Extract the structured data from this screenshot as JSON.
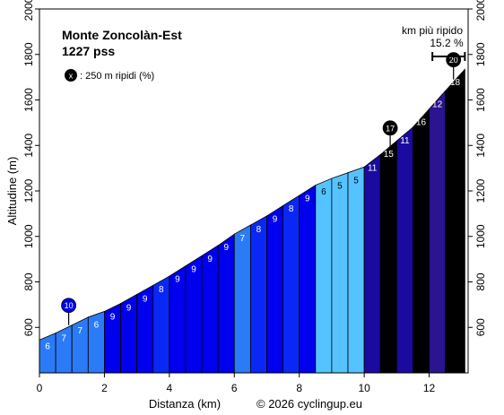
{
  "chart_data": {
    "type": "area",
    "title": "Monte Zoncolàn-Est",
    "subtitle": "1227 pss",
    "xlabel": "Distanza (km)",
    "ylabel": "Altitudine (m)",
    "credit": "© 2026 cyclingup.eu",
    "xlim": [
      0,
      13.2
    ],
    "ylim": [
      400,
      2000
    ],
    "x_ticks": [
      "0",
      "2",
      "4",
      "6",
      "8",
      "10",
      "12"
    ],
    "x_tick_values": [
      0,
      2,
      4,
      6,
      8,
      10,
      12
    ],
    "y_ticks": [
      "600",
      "800",
      "1000",
      "1200",
      "1400",
      "1600",
      "1800",
      "2000"
    ],
    "y_tick_values": [
      600,
      800,
      1000,
      1200,
      1400,
      1600,
      1800,
      2000
    ],
    "grid": false,
    "legend_text": ": 250 m ripidi (%)",
    "legend_marker": "x",
    "steepest": {
      "label": "km più ripido",
      "value": "15.2 %",
      "x_start": 12.1,
      "x_end": 13.1
    },
    "points": {
      "x": [
        0,
        0.5,
        1,
        1.5,
        2,
        2.5,
        3,
        3.5,
        4,
        4.5,
        5,
        5.5,
        6,
        6.5,
        7,
        7.5,
        8,
        8.5,
        9,
        9.5,
        10,
        10.5,
        11,
        11.5,
        12,
        12.5,
        13.1
      ],
      "y": [
        545,
        575,
        610,
        645,
        670,
        705,
        745,
        785,
        825,
        870,
        915,
        960,
        1010,
        1050,
        1090,
        1135,
        1180,
        1225,
        1255,
        1280,
        1305,
        1360,
        1420,
        1480,
        1560,
        1640,
        1735
      ]
    },
    "segments": [
      {
        "label": "6",
        "color": "#2b7bf7"
      },
      {
        "label": "7",
        "color": "#2b7bf7"
      },
      {
        "label": "7",
        "color": "#2b7bf7"
      },
      {
        "label": "6",
        "color": "#2b7bf7"
      },
      {
        "label": "9",
        "color": "#0000ee"
      },
      {
        "label": "9",
        "color": "#0000ee"
      },
      {
        "label": "9",
        "color": "#0000ee"
      },
      {
        "label": "8",
        "color": "#0a28f5"
      },
      {
        "label": "9",
        "color": "#0000ee"
      },
      {
        "label": "9",
        "color": "#0000ee"
      },
      {
        "label": "9",
        "color": "#0000ee"
      },
      {
        "label": "9",
        "color": "#0000ee"
      },
      {
        "label": "7",
        "color": "#2b7bf7"
      },
      {
        "label": "8",
        "color": "#0a28f5"
      },
      {
        "label": "9",
        "color": "#0000ee"
      },
      {
        "label": "8",
        "color": "#0a28f5"
      },
      {
        "label": "9",
        "color": "#0000ee"
      },
      {
        "label": "6",
        "color": "#55c3ff"
      },
      {
        "label": "5",
        "color": "#55c3ff"
      },
      {
        "label": "5",
        "color": "#55c3ff"
      },
      {
        "label": "11",
        "color": "#1a0aa0"
      },
      {
        "label": "15",
        "color": "#000000"
      },
      {
        "label": "11",
        "color": "#1a0aa0"
      },
      {
        "label": "16",
        "color": "#000000"
      },
      {
        "label": "12",
        "color": "#2a1490"
      },
      {
        "label": "18",
        "color": "#000000"
      }
    ],
    "markers": [
      {
        "label": "10",
        "x": 0.9,
        "y": 610,
        "color": "#0000ee"
      },
      {
        "label": "17",
        "x": 10.8,
        "y": 1390,
        "color": "#000000"
      },
      {
        "label": "20",
        "x": 12.75,
        "y": 1690,
        "color": "#000000"
      }
    ]
  }
}
